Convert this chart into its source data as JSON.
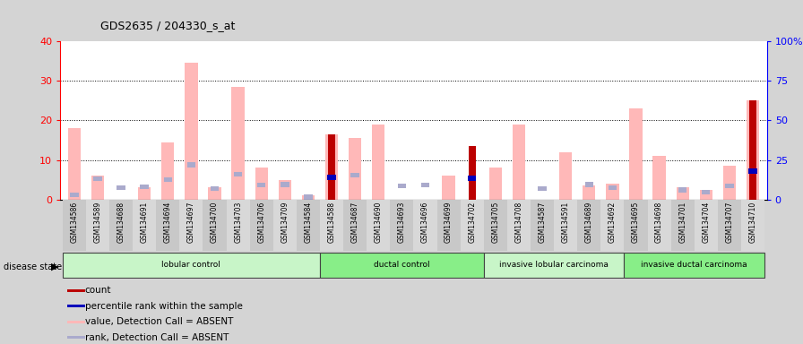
{
  "title": "GDS2635 / 204330_s_at",
  "samples": [
    "GSM134586",
    "GSM134589",
    "GSM134688",
    "GSM134691",
    "GSM134694",
    "GSM134697",
    "GSM134700",
    "GSM134703",
    "GSM134706",
    "GSM134709",
    "GSM134584",
    "GSM134588",
    "GSM134687",
    "GSM134690",
    "GSM134693",
    "GSM134696",
    "GSM134699",
    "GSM134702",
    "GSM134705",
    "GSM134708",
    "GSM134587",
    "GSM134591",
    "GSM134689",
    "GSM134692",
    "GSM134695",
    "GSM134698",
    "GSM134701",
    "GSM134704",
    "GSM134707",
    "GSM134710"
  ],
  "groups": [
    {
      "label": "lobular control",
      "start": 0,
      "end": 10,
      "color": "#c8f5c8"
    },
    {
      "label": "ductal control",
      "start": 11,
      "end": 17,
      "color": "#88ee88"
    },
    {
      "label": "invasive lobular carcinoma",
      "start": 18,
      "end": 23,
      "color": "#c8f5c8"
    },
    {
      "label": "invasive ductal carcinoma",
      "start": 24,
      "end": 29,
      "color": "#88ee88"
    }
  ],
  "pink_value": [
    18,
    6,
    0,
    3,
    14.5,
    34.5,
    3,
    28.5,
    8,
    5,
    1,
    16.5,
    15.5,
    19,
    0,
    0,
    6,
    0,
    8,
    19,
    0,
    12,
    3.5,
    4,
    23,
    11,
    3,
    2.5,
    8.5,
    25
  ],
  "blue_rank": [
    3,
    13,
    7.5,
    8,
    12.5,
    22,
    7,
    16,
    9,
    9.5,
    1.5,
    14,
    15.5,
    0,
    8.5,
    9,
    0,
    13.5,
    0,
    0,
    7,
    0,
    9.5,
    7.5,
    0,
    0,
    6,
    4.5,
    8.5,
    18
  ],
  "count": [
    0,
    0,
    0,
    0,
    0,
    0,
    0,
    0,
    0,
    0,
    0,
    16.5,
    0,
    0,
    0,
    0,
    0,
    13.5,
    0,
    0,
    0,
    0,
    0,
    0,
    0,
    0,
    0,
    0,
    0,
    25
  ],
  "percentile": [
    0,
    0,
    0,
    0,
    0,
    0,
    0,
    0,
    0,
    0,
    0,
    14,
    0,
    0,
    0,
    0,
    0,
    13.5,
    0,
    0,
    0,
    0,
    0,
    0,
    0,
    0,
    0,
    0,
    0,
    18
  ],
  "ylim_left": [
    0,
    40
  ],
  "ylim_right": [
    0,
    100
  ],
  "yticks_left": [
    0,
    10,
    20,
    30,
    40
  ],
  "yticks_right": [
    0,
    25,
    50,
    75,
    100
  ],
  "plot_bg": "#ffffff",
  "fig_bg": "#d4d4d4",
  "xtick_bg": "#c8c8c8",
  "pink_bar_color": "#ffb8b8",
  "light_blue_color": "#aaaacc",
  "dark_red_color": "#bb0000",
  "dark_blue_color": "#0000bb",
  "disease_state_label": "disease state",
  "legend_items": [
    {
      "color": "#bb0000",
      "label": "count"
    },
    {
      "color": "#0000bb",
      "label": "percentile rank within the sample"
    },
    {
      "color": "#ffb8b8",
      "label": "value, Detection Call = ABSENT"
    },
    {
      "color": "#aaaacc",
      "label": "rank, Detection Call = ABSENT"
    }
  ]
}
